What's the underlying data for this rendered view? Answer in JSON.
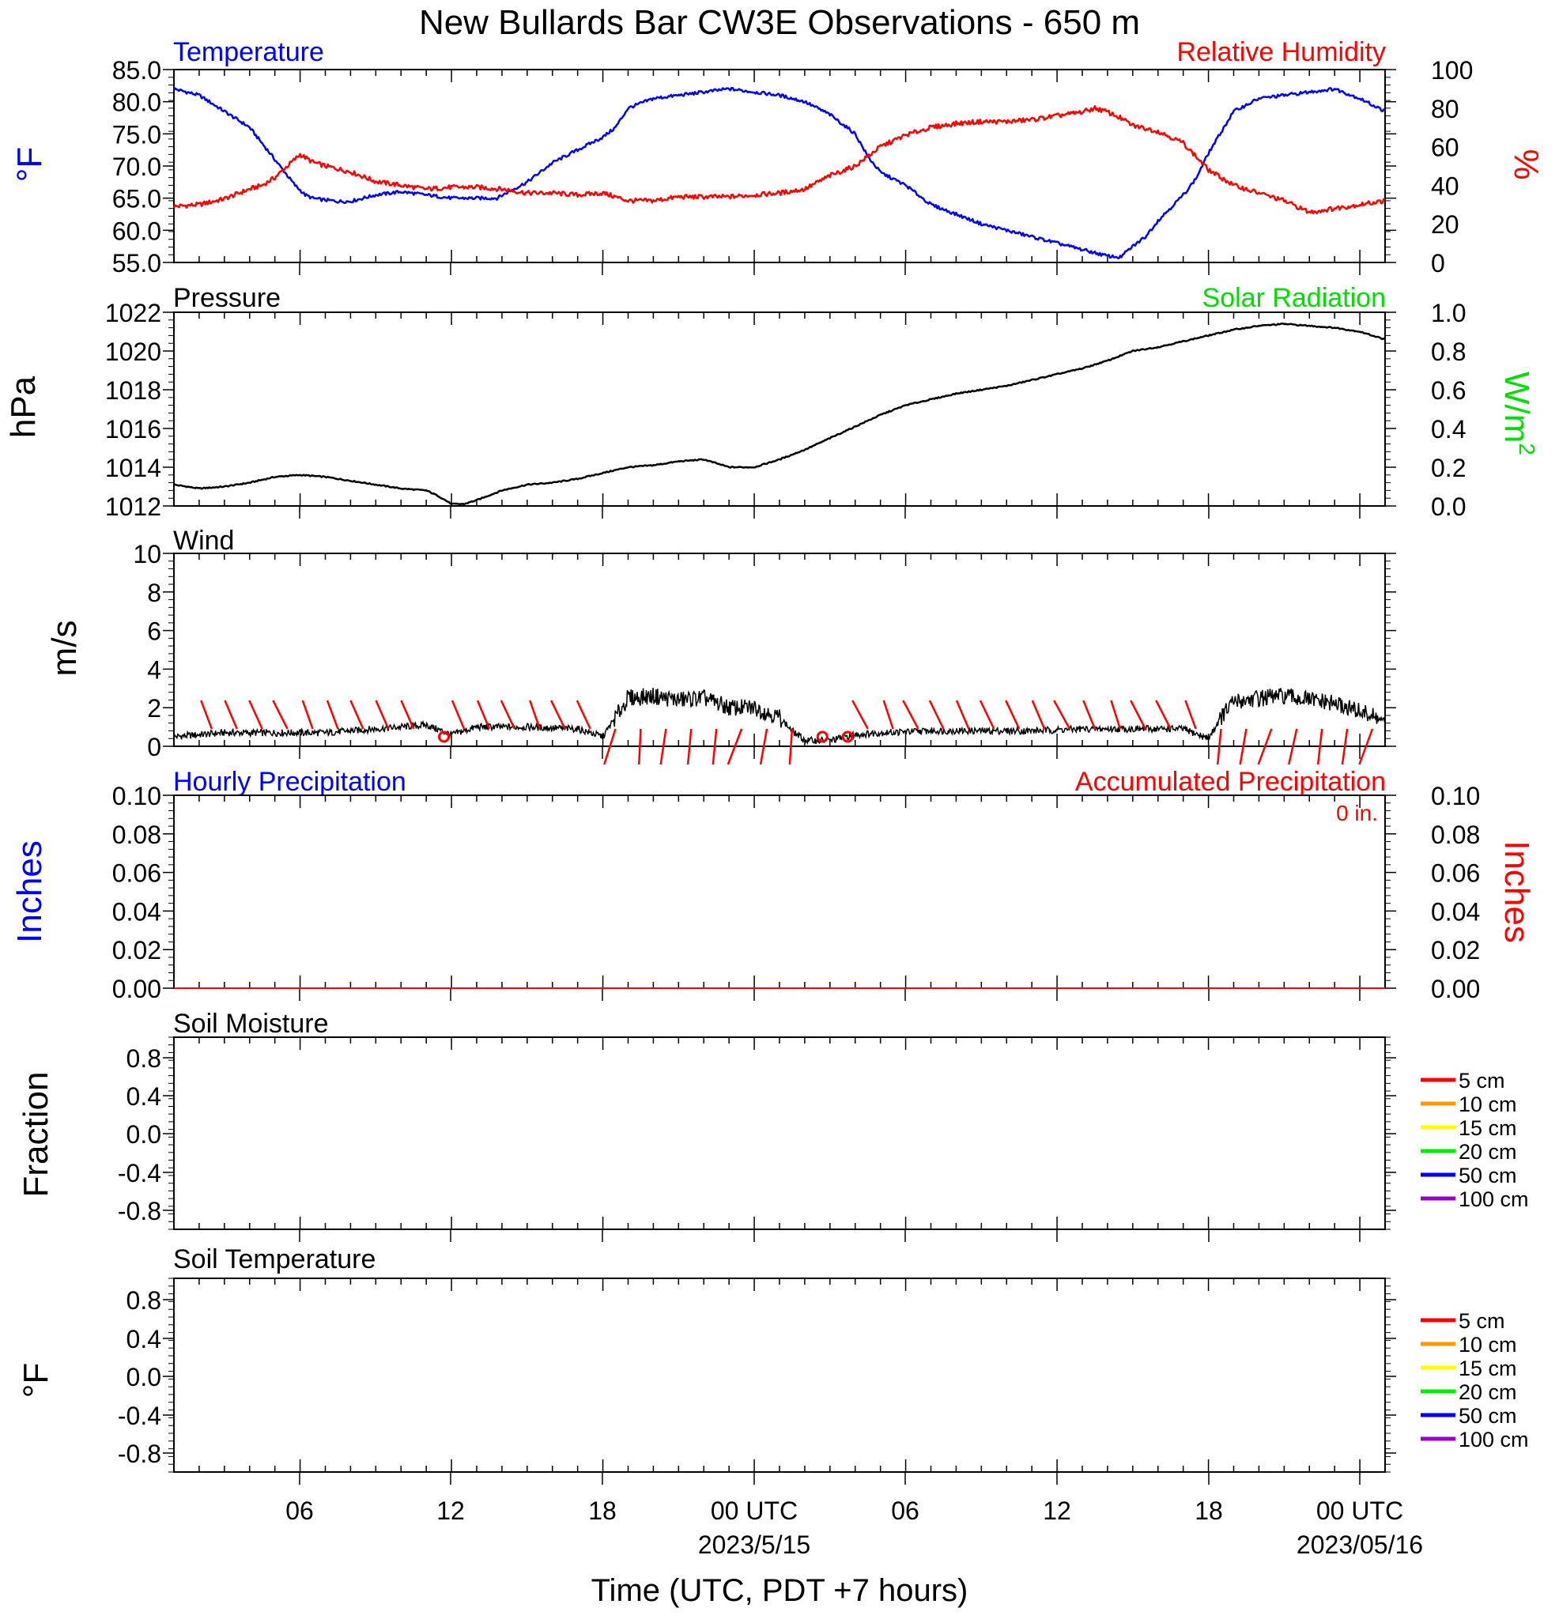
{
  "title": "New Bullards Bar CW3E Observations - 650 m",
  "x_axis": {
    "label": "Time (UTC, PDT +7 hours)",
    "tick_labels": [
      "06",
      "12",
      "18",
      "00 UTC",
      "06",
      "12",
      "18",
      "00 UTC"
    ],
    "date_labels": [
      "2023/5/15",
      "2023/05/16"
    ]
  },
  "colors": {
    "temperature": "#0000ff",
    "humidity": "#ff0000",
    "pressure": "#000000",
    "solar": "#00dd00",
    "wind": "#000000",
    "barb": "#ff0000",
    "hourly_precip": "#0000ff",
    "accum_precip": "#ff0000",
    "depths": [
      "#ff0000",
      "#ff9900",
      "#ffff00",
      "#00ee00",
      "#0000ff",
      "#9900cc"
    ]
  },
  "panels": {
    "temp_rh": {
      "left_title": "Temperature",
      "right_title": "Relative Humidity",
      "left_unit": "°F",
      "right_unit": "%",
      "left_ticks": [
        "85.0",
        "80.0",
        "75.0",
        "70.0",
        "65.0",
        "60.0",
        "55.0"
      ],
      "right_ticks": [
        "100",
        "80",
        "60",
        "40",
        "20",
        "0"
      ]
    },
    "pressure": {
      "left_title": "Pressure",
      "right_title": "Solar Radiation",
      "left_unit": "hPa",
      "right_unit": "W/m",
      "right_unit_sup": "2",
      "left_ticks": [
        "1022",
        "1020",
        "1018",
        "1016",
        "1014",
        "1012"
      ],
      "right_ticks": [
        "1.0",
        "0.8",
        "0.6",
        "0.4",
        "0.2",
        "0.0"
      ]
    },
    "wind": {
      "left_title": "Wind",
      "left_unit": "m/s",
      "left_ticks": [
        "10",
        "8",
        "6",
        "4",
        "2",
        "0"
      ]
    },
    "precip": {
      "left_title": "Hourly Precipitation",
      "right_title": "Accumulated Precipitation",
      "total_label": "0 in.",
      "left_unit": "Inches",
      "right_unit": "Inches",
      "left_ticks": [
        "0.10",
        "0.08",
        "0.06",
        "0.04",
        "0.02",
        "0.00"
      ],
      "right_ticks": [
        "0.10",
        "0.08",
        "0.06",
        "0.04",
        "0.02",
        "0.00"
      ]
    },
    "soil_moisture": {
      "left_title": "Soil Moisture",
      "left_unit": "Fraction",
      "left_ticks": [
        "0.8",
        "0.4",
        "0.0",
        "-0.4",
        "-0.8"
      ],
      "legend": [
        "5 cm",
        "10 cm",
        "15 cm",
        "20 cm",
        "50 cm",
        "100 cm"
      ]
    },
    "soil_temp": {
      "left_title": "Soil Temperature",
      "left_unit": "°F",
      "left_ticks": [
        "0.8",
        "0.4",
        "0.0",
        "-0.4",
        "-0.8"
      ],
      "legend": [
        "5 cm",
        "10 cm",
        "15 cm",
        "20 cm",
        "50 cm",
        "100 cm"
      ]
    }
  },
  "chart_data": [
    {
      "type": "line",
      "panel": "temp_rh",
      "x_unit": "hours since 2023-05-14 01 UTC",
      "left_ylim": [
        55,
        85
      ],
      "right_ylim": [
        0,
        100
      ],
      "series": [
        {
          "name": "Temperature",
          "axis": "left",
          "unit": "°F",
          "x": [
            0,
            1,
            2,
            3,
            3.5,
            4,
            4.4,
            4.8,
            5.2,
            5.5,
            5.8,
            6.5,
            7,
            8,
            9,
            10,
            11,
            12,
            12.8,
            13.5,
            14,
            15,
            16,
            16.5,
            17,
            17.5,
            18,
            19,
            20,
            21,
            22,
            23,
            24,
            25,
            26,
            26.5,
            27,
            27.5,
            28,
            29,
            30,
            31,
            32,
            33,
            34,
            35,
            36,
            37,
            37.5,
            38,
            38.5,
            39,
            39.5,
            40,
            40.5,
            41,
            42,
            43,
            44,
            45,
            46,
            47,
            48
          ],
          "y": [
            82,
            81,
            78.5,
            76,
            73.5,
            71,
            69,
            67,
            65.5,
            65,
            64.8,
            64.5,
            64.5,
            65.5,
            66,
            65.5,
            65,
            65,
            65,
            66.5,
            67.5,
            70.5,
            72.5,
            73.5,
            74.5,
            76,
            79,
            80.5,
            81,
            81.5,
            82,
            81.5,
            81,
            80,
            78,
            76.5,
            75,
            71.5,
            69,
            67,
            64,
            62.5,
            61,
            60,
            59,
            58,
            57,
            56,
            55.8,
            57.5,
            59,
            61.5,
            63.5,
            65.5,
            68,
            72,
            78.5,
            80.5,
            81,
            81.5,
            82,
            80.5,
            78.5
          ]
        },
        {
          "name": "Relative Humidity",
          "axis": "right",
          "unit": "%",
          "x": [
            0,
            1,
            2,
            3,
            3.5,
            4,
            4.5,
            5,
            5.5,
            6,
            7,
            8,
            9,
            10,
            11,
            12,
            13,
            14,
            15,
            16,
            17,
            18,
            19,
            20,
            21,
            22,
            23,
            24,
            25,
            26,
            27,
            28,
            29,
            30,
            31,
            32,
            33,
            34,
            35,
            36,
            36.5,
            37,
            37.5,
            38,
            39,
            40,
            40.5,
            41,
            42,
            43,
            44,
            45,
            46,
            47,
            48
          ],
          "y": [
            29,
            30,
            33,
            38,
            40,
            44,
            50,
            56,
            52,
            50,
            47,
            42,
            40,
            38,
            39,
            39,
            38,
            36,
            36,
            35,
            36,
            32,
            32,
            34,
            34,
            34,
            35,
            36,
            38,
            45,
            50,
            60,
            66,
            70,
            72,
            73,
            73,
            74,
            76,
            78,
            80,
            78,
            75,
            71,
            68,
            62,
            55,
            48,
            40,
            36,
            32,
            26,
            28,
            30,
            32
          ]
        }
      ]
    },
    {
      "type": "line",
      "panel": "pressure",
      "x_unit": "hours since 2023-05-14 01 UTC",
      "left_ylim": [
        1012,
        1022
      ],
      "right_ylim": [
        0,
        1.0
      ],
      "series": [
        {
          "name": "Pressure",
          "axis": "left",
          "unit": "hPa",
          "x": [
            0,
            1,
            2,
            3,
            4,
            5,
            6,
            7,
            8,
            9,
            10,
            10.5,
            11,
            11.5,
            12,
            13,
            14,
            15,
            16,
            17,
            18,
            19,
            20,
            21,
            22,
            23,
            24,
            25,
            26,
            27,
            28,
            29,
            30,
            31,
            32,
            33,
            34,
            35,
            36,
            37,
            38,
            39,
            40,
            41,
            42,
            43,
            44,
            45,
            46,
            47,
            48
          ],
          "y": [
            1013.1,
            1012.9,
            1013.0,
            1013.2,
            1013.5,
            1013.6,
            1013.5,
            1013.3,
            1013.1,
            1012.9,
            1012.8,
            1012.5,
            1012.1,
            1012.1,
            1012.3,
            1012.8,
            1013.1,
            1013.2,
            1013.4,
            1013.7,
            1014.0,
            1014.1,
            1014.3,
            1014.4,
            1014.0,
            1014.0,
            1014.4,
            1014.9,
            1015.5,
            1016.1,
            1016.7,
            1017.2,
            1017.5,
            1017.8,
            1018.0,
            1018.2,
            1018.5,
            1018.8,
            1019.1,
            1019.5,
            1020.0,
            1020.2,
            1020.5,
            1020.8,
            1021.1,
            1021.3,
            1021.4,
            1021.3,
            1021.2,
            1021.0,
            1020.6
          ]
        }
      ]
    },
    {
      "type": "line",
      "panel": "wind",
      "x_unit": "hours since 2023-05-14 01 UTC",
      "ylim": [
        0,
        10
      ],
      "series": [
        {
          "name": "Wind",
          "unit": "m/s",
          "x": [
            0,
            2,
            4,
            6,
            8,
            10,
            11,
            12,
            14,
            16,
            17,
            17.5,
            18,
            19,
            20,
            21,
            22,
            23,
            24,
            24.5,
            25,
            26,
            27,
            28,
            30,
            32,
            34,
            36,
            38,
            40,
            41,
            41.5,
            42,
            43,
            44,
            45,
            46,
            47,
            48
          ],
          "y": [
            0.5,
            0.7,
            0.7,
            0.7,
            0.9,
            1.1,
            0.6,
            1.0,
            1.0,
            0.9,
            0.5,
            1.5,
            2.5,
            2.6,
            2.4,
            2.5,
            2.0,
            2.0,
            1.5,
            0.8,
            0.3,
            0.3,
            0.6,
            0.7,
            0.8,
            0.8,
            0.8,
            0.9,
            0.9,
            0.9,
            0.4,
            1.5,
            2.3,
            2.5,
            2.6,
            2.4,
            2.2,
            1.8,
            1.3
          ]
        }
      ]
    },
    {
      "type": "line",
      "panel": "precip",
      "x_unit": "hours since 2023-05-14 01 UTC",
      "left_ylim": [
        0,
        0.1
      ],
      "right_ylim": [
        0,
        0.1
      ],
      "series": [
        {
          "name": "Hourly Precipitation",
          "axis": "left",
          "unit": "Inches",
          "x": [
            0,
            48
          ],
          "y": [
            0,
            0
          ]
        },
        {
          "name": "Accumulated Precipitation",
          "axis": "right",
          "unit": "Inches",
          "x": [
            0,
            48
          ],
          "y": [
            0,
            0
          ]
        }
      ]
    }
  ]
}
